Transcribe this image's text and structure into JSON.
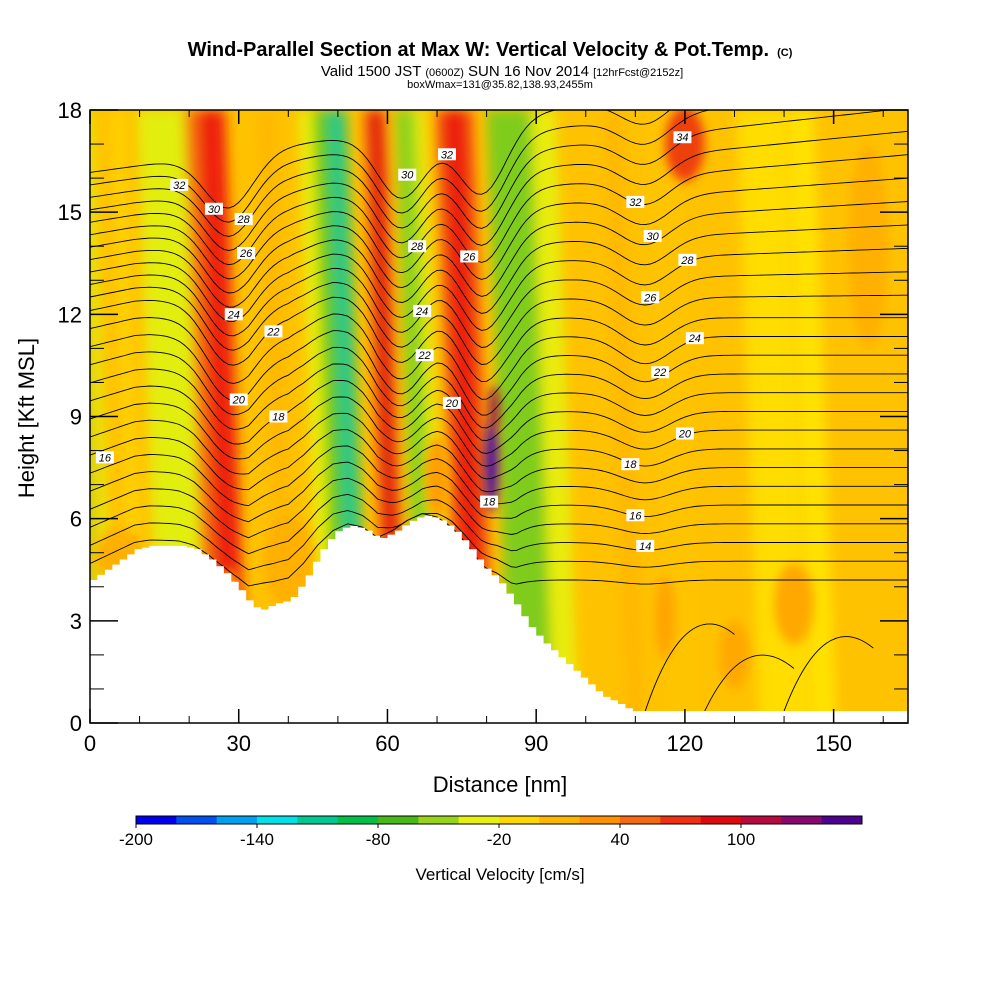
{
  "chart_data": {
    "type": "heatmap",
    "title_main": "Wind-Parallel Section at Max W: Vertical Velocity & Pot.Temp.",
    "title_copyright": "(C)",
    "subtitle_valid": "Valid 1500 JST",
    "subtitle_zulu": "(0600Z)",
    "subtitle_date": "SUN 16 Nov 2014",
    "subtitle_fcst": "[12hrFcst@2152z]",
    "subtitle_box": "boxWmax=131@35.82,138.93,2455m",
    "xlabel": "Distance [nm]",
    "ylabel": "Height [Kft MSL]",
    "xlim": [
      0,
      165
    ],
    "ylim": [
      0,
      18
    ],
    "x_ticks": [
      0,
      30,
      60,
      90,
      120,
      150
    ],
    "x_tick_labels": [
      "0",
      "30",
      "60",
      "90",
      "120",
      "150"
    ],
    "y_ticks": [
      0,
      3,
      6,
      9,
      12,
      15,
      18
    ],
    "y_tick_labels": [
      "0",
      "3",
      "6",
      "9",
      "12",
      "15",
      "18"
    ],
    "terrain": [
      [
        0,
        4.2
      ],
      [
        3,
        4.5
      ],
      [
        6,
        4.8
      ],
      [
        9,
        5.1
      ],
      [
        12,
        5.2
      ],
      [
        15,
        5.2
      ],
      [
        18,
        5.2
      ],
      [
        21,
        5.1
      ],
      [
        24,
        4.8
      ],
      [
        27,
        4.4
      ],
      [
        30,
        3.9
      ],
      [
        32,
        3.5
      ],
      [
        34,
        3.3
      ],
      [
        37,
        3.5
      ],
      [
        40,
        3.6
      ],
      [
        43,
        4.2
      ],
      [
        46,
        5.0
      ],
      [
        49,
        5.6
      ],
      [
        52,
        5.8
      ],
      [
        55,
        5.7
      ],
      [
        58,
        5.4
      ],
      [
        61,
        5.6
      ],
      [
        64,
        5.9
      ],
      [
        67,
        6.1
      ],
      [
        70,
        6.0
      ],
      [
        73,
        5.7
      ],
      [
        76,
        5.2
      ],
      [
        79,
        4.6
      ],
      [
        82,
        4.2
      ],
      [
        85,
        3.6
      ],
      [
        88,
        2.9
      ],
      [
        91,
        2.4
      ],
      [
        94,
        2.0
      ],
      [
        97,
        1.6
      ],
      [
        100,
        1.2
      ],
      [
        103,
        0.8
      ],
      [
        106,
        0.6
      ],
      [
        109,
        0.35
      ],
      [
        112,
        0.35
      ],
      [
        165,
        0.35
      ]
    ],
    "velocity_columns": [
      {
        "x": 1.5,
        "w": 0.95,
        "color": "#90d820"
      },
      {
        "x": 4,
        "w": 1.8,
        "color": "#e0ee10"
      },
      {
        "x": 10,
        "w": 2.5,
        "color": "#ffd400"
      },
      {
        "x": 20,
        "w": 9,
        "color": "#a8dc18"
      },
      {
        "x": 21,
        "w": 14,
        "color": "#e6ef10"
      },
      {
        "x": 27,
        "w": 7,
        "color": "#f56a10"
      },
      {
        "x": 29,
        "w": 5.5,
        "color": "#ee2010"
      },
      {
        "x": 40,
        "w": 4,
        "color": "#ffb800"
      },
      {
        "x": 48,
        "w": 3,
        "color": "#e8ee10"
      },
      {
        "x": 53,
        "w": 7,
        "color": "#60c818"
      },
      {
        "x": 54,
        "w": 3,
        "color": "#20c890"
      },
      {
        "x": 62,
        "w": 5,
        "color": "#f56a10"
      },
      {
        "x": 62,
        "w": 3,
        "color": "#e01010"
      },
      {
        "x": 68,
        "w": 4,
        "color": "#88d420"
      },
      {
        "x": 71,
        "w": 2,
        "color": "#e8ee10"
      },
      {
        "x": 78,
        "w": 8,
        "color": "#f56a10"
      },
      {
        "x": 78,
        "w": 5.5,
        "color": "#ec2010"
      },
      {
        "x": 89,
        "w": 9,
        "color": "#78cc20"
      },
      {
        "x": 96,
        "w": 5,
        "color": "#e8ee10"
      },
      {
        "x": 110,
        "w": 4,
        "color": "#ffb800"
      },
      {
        "x": 120,
        "w": 6,
        "color": "#ffc400"
      },
      {
        "x": 140,
        "w": 10,
        "color": "#ffde00"
      },
      {
        "x": 148,
        "w": 5,
        "color": "#ffe400"
      }
    ],
    "velocity_blobs": [
      {
        "x": 6,
        "y": 4.9,
        "rx": 5,
        "ry": 0.8,
        "color": "#ffb000"
      },
      {
        "x": 40,
        "y": 4.8,
        "rx": 5,
        "ry": 1.3,
        "color": "#ffb000"
      },
      {
        "x": 28,
        "y": 3.9,
        "rx": 1.8,
        "ry": 0.6,
        "color": "#ffb000"
      },
      {
        "x": 70,
        "y": 7.2,
        "rx": 2.4,
        "ry": 1.2,
        "color": "#ff9f00"
      },
      {
        "x": 81,
        "y": 7.6,
        "rx": 1.4,
        "ry": 1.4,
        "color": "#5010a0"
      },
      {
        "x": 81.5,
        "y": 9.2,
        "rx": 1,
        "ry": 0.7,
        "color": "#901050"
      },
      {
        "x": 120,
        "y": 17,
        "rx": 4,
        "ry": 1.1,
        "color": "#ee4010"
      },
      {
        "x": 116,
        "y": 3.1,
        "rx": 2,
        "ry": 1.2,
        "color": "#ffa400"
      },
      {
        "x": 130,
        "y": 2,
        "rx": 3,
        "ry": 1,
        "color": "#ffa800"
      },
      {
        "x": 142,
        "y": 3.5,
        "rx": 4,
        "ry": 1.2,
        "color": "#ffa800"
      },
      {
        "x": 157,
        "y": 14,
        "rx": 4,
        "ry": 3,
        "color": "#ffb000"
      }
    ],
    "theta_contour_labels": [
      {
        "x": 3,
        "y": 7.8,
        "text": "16"
      },
      {
        "x": 18,
        "y": 15.8,
        "text": "32"
      },
      {
        "x": 25,
        "y": 15.1,
        "text": "30"
      },
      {
        "x": 31,
        "y": 14.8,
        "text": "28"
      },
      {
        "x": 31.5,
        "y": 13.8,
        "text": "26"
      },
      {
        "x": 29,
        "y": 12.0,
        "text": "24"
      },
      {
        "x": 37,
        "y": 11.5,
        "text": "22"
      },
      {
        "x": 30,
        "y": 9.5,
        "text": "20"
      },
      {
        "x": 38,
        "y": 9.0,
        "text": "18"
      },
      {
        "x": 64,
        "y": 16.1,
        "text": "30"
      },
      {
        "x": 66,
        "y": 14.0,
        "text": "28"
      },
      {
        "x": 72,
        "y": 16.7,
        "text": "32"
      },
      {
        "x": 76.5,
        "y": 13.7,
        "text": "26"
      },
      {
        "x": 67,
        "y": 12.1,
        "text": "24"
      },
      {
        "x": 67.5,
        "y": 10.8,
        "text": "22"
      },
      {
        "x": 73,
        "y": 9.4,
        "text": "20"
      },
      {
        "x": 80.5,
        "y": 6.5,
        "text": "18"
      },
      {
        "x": 110,
        "y": 15.3,
        "text": "32"
      },
      {
        "x": 119.5,
        "y": 17.2,
        "text": "34"
      },
      {
        "x": 113.5,
        "y": 14.3,
        "text": "30"
      },
      {
        "x": 120.5,
        "y": 13.6,
        "text": "28"
      },
      {
        "x": 113,
        "y": 12.5,
        "text": "26"
      },
      {
        "x": 122,
        "y": 11.3,
        "text": "24"
      },
      {
        "x": 115,
        "y": 10.3,
        "text": "22"
      },
      {
        "x": 120,
        "y": 8.5,
        "text": "20"
      },
      {
        "x": 109,
        "y": 7.6,
        "text": "18"
      },
      {
        "x": 110,
        "y": 6.1,
        "text": "16"
      },
      {
        "x": 112,
        "y": 5.2,
        "text": "14"
      }
    ],
    "colorbar": {
      "label": "Vertical Velocity [cm/s]",
      "tick_labels": [
        "-200",
        "-140",
        "-80",
        "-20",
        "40",
        "100"
      ],
      "colors": [
        "#0000ee",
        "#0050f0",
        "#00a0f0",
        "#00e0e8",
        "#00c890",
        "#00c048",
        "#48b818",
        "#98d418",
        "#e8f010",
        "#ffd800",
        "#ffb400",
        "#ff9000",
        "#f86810",
        "#f03010",
        "#e00810",
        "#b80840",
        "#880870",
        "#500090"
      ]
    }
  }
}
